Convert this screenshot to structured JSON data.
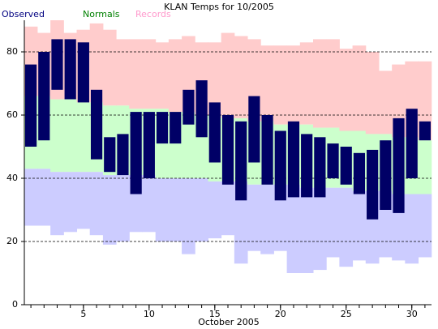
{
  "chart_data": {
    "type": "bar",
    "title": "KLAN Temps for 10/2005",
    "xlabel": "October 2005",
    "x": [
      1,
      2,
      3,
      4,
      5,
      6,
      7,
      8,
      9,
      10,
      11,
      12,
      13,
      14,
      15,
      16,
      17,
      18,
      19,
      20,
      21,
      22,
      23,
      24,
      25,
      26,
      27,
      28,
      29,
      30,
      31
    ],
    "xlim": [
      0.5,
      31.5
    ],
    "xticks": [
      5,
      10,
      15,
      20,
      25,
      30
    ],
    "ylim": [
      0,
      90
    ],
    "yticks": [
      0,
      20,
      40,
      60,
      80
    ],
    "grid": true,
    "series": [
      {
        "name": "Observed",
        "color": "#000066",
        "label_color": "#000080",
        "high": [
          76,
          80,
          84,
          84,
          83,
          68,
          53,
          54,
          61,
          61,
          61,
          61,
          68,
          71,
          64,
          60,
          58,
          66,
          60,
          55,
          58,
          54,
          53,
          51,
          50,
          48,
          49,
          52,
          59,
          62,
          58
        ],
        "low": [
          50,
          52,
          68,
          65,
          64,
          46,
          42,
          41,
          35,
          40,
          51,
          51,
          57,
          53,
          45,
          38,
          33,
          45,
          38,
          33,
          34,
          34,
          34,
          40,
          38,
          35,
          27,
          30,
          29,
          40,
          52
        ]
      },
      {
        "name": "Normals",
        "color": "#ccffcc",
        "label_color": "#008000",
        "high": [
          66,
          66,
          65,
          65,
          64,
          64,
          63,
          63,
          62,
          62,
          62,
          61,
          61,
          60,
          60,
          59,
          59,
          58,
          58,
          57,
          57,
          57,
          56,
          56,
          55,
          55,
          54,
          54,
          53,
          53,
          52
        ],
        "low": [
          43,
          43,
          42,
          42,
          42,
          42,
          41,
          41,
          41,
          41,
          40,
          40,
          40,
          40,
          39,
          39,
          39,
          38,
          38,
          38,
          38,
          37,
          37,
          37,
          37,
          36,
          36,
          36,
          35,
          35,
          35
        ]
      },
      {
        "name": "Records",
        "color": "#ffcccc",
        "low_color": "#ccccff",
        "label_color": "#ff99cc",
        "high": [
          88,
          86,
          90,
          86,
          87,
          89,
          87,
          84,
          84,
          84,
          83,
          84,
          85,
          83,
          83,
          86,
          85,
          84,
          82,
          82,
          82,
          83,
          84,
          84,
          81,
          82,
          80,
          74,
          76,
          77,
          77
        ],
        "low": [
          25,
          25,
          22,
          23,
          24,
          22,
          19,
          20,
          23,
          23,
          20,
          20,
          16,
          20,
          21,
          22,
          13,
          17,
          16,
          17,
          10,
          10,
          11,
          15,
          12,
          14,
          13,
          15,
          14,
          13,
          15
        ]
      }
    ]
  }
}
